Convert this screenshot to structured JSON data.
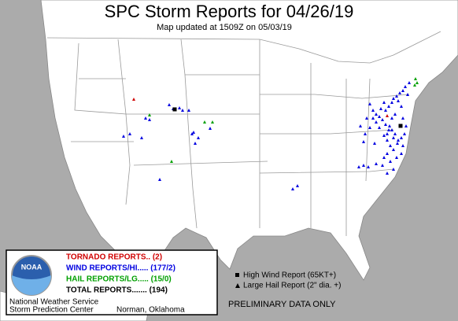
{
  "header": {
    "title": "SPC Storm Reports for 04/26/19",
    "subtitle": "Map updated at 1509Z on 05/03/19"
  },
  "legend": {
    "tornado": "TORNADO REPORTS.. (2)",
    "wind": "WIND REPORTS/HI..... (177/2)",
    "hail": "HAIL REPORTS/LG..... (15/0)",
    "total": "TOTAL REPORTS....... (194)",
    "logo": "NOAA",
    "office1": "National Weather Service",
    "office2": "Storm Prediction Center",
    "city": "Norman, Oklahoma"
  },
  "key": {
    "high_wind": "High Wind Report (65KT+)",
    "large_hail": "Large Hail Report (2\" dia. +)"
  },
  "notice": "PRELIMINARY DATA ONLY"
}
